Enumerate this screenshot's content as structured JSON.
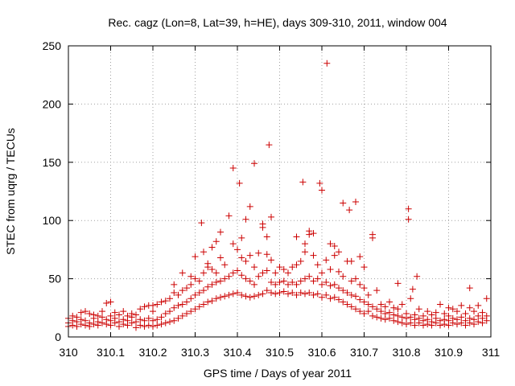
{
  "chart_data": {
    "type": "scatter",
    "title": "Rec. cagz (Lon=8, Lat=39, h=HE), days 309-310, 2011, window 004",
    "xlabel": "GPS time / Days of year 2011",
    "ylabel": "STEC from uqrg / TECUs",
    "xlim": [
      310,
      311
    ],
    "ylim": [
      0,
      250
    ],
    "xticks": [
      "310",
      "310.1",
      "310.2",
      "310.3",
      "310.4",
      "310.5",
      "310.6",
      "310.7",
      "310.8",
      "310.9",
      "311"
    ],
    "yticks": [
      "0",
      "50",
      "100",
      "150",
      "200",
      "250"
    ],
    "grid": true,
    "marker": "plus",
    "color": "#cc0000",
    "points": [
      [
        310.0,
        9
      ],
      [
        310.0,
        12
      ],
      [
        310.0,
        16
      ],
      [
        310.01,
        10
      ],
      [
        310.01,
        14
      ],
      [
        310.01,
        18
      ],
      [
        310.02,
        9
      ],
      [
        310.02,
        13
      ],
      [
        310.02,
        17
      ],
      [
        310.03,
        11
      ],
      [
        310.03,
        15
      ],
      [
        310.03,
        21
      ],
      [
        310.04,
        10
      ],
      [
        310.04,
        14
      ],
      [
        310.04,
        22
      ],
      [
        310.05,
        9
      ],
      [
        310.05,
        12
      ],
      [
        310.05,
        20
      ],
      [
        310.06,
        11
      ],
      [
        310.06,
        16
      ],
      [
        310.06,
        19
      ],
      [
        310.07,
        10
      ],
      [
        310.07,
        13
      ],
      [
        310.07,
        18
      ],
      [
        310.08,
        12
      ],
      [
        310.08,
        17
      ],
      [
        310.08,
        22
      ],
      [
        310.09,
        11
      ],
      [
        310.09,
        15
      ],
      [
        310.09,
        29
      ],
      [
        310.1,
        10
      ],
      [
        310.1,
        14
      ],
      [
        310.1,
        18
      ],
      [
        310.1,
        30
      ],
      [
        310.11,
        12
      ],
      [
        310.11,
        16
      ],
      [
        310.11,
        21
      ],
      [
        310.12,
        9
      ],
      [
        310.12,
        13
      ],
      [
        310.12,
        19
      ],
      [
        310.13,
        11
      ],
      [
        310.13,
        15
      ],
      [
        310.13,
        22
      ],
      [
        310.14,
        10
      ],
      [
        310.14,
        14
      ],
      [
        310.14,
        18
      ],
      [
        310.15,
        12
      ],
      [
        310.15,
        17
      ],
      [
        310.15,
        20
      ],
      [
        310.16,
        8
      ],
      [
        310.16,
        13
      ],
      [
        310.16,
        19
      ],
      [
        310.17,
        10
      ],
      [
        310.17,
        15
      ],
      [
        310.17,
        24
      ],
      [
        310.18,
        9
      ],
      [
        310.18,
        14
      ],
      [
        310.18,
        26
      ],
      [
        310.19,
        10
      ],
      [
        310.19,
        16
      ],
      [
        310.19,
        27
      ],
      [
        310.2,
        9
      ],
      [
        310.2,
        14
      ],
      [
        310.2,
        22
      ],
      [
        310.2,
        27
      ],
      [
        310.21,
        10
      ],
      [
        310.21,
        15
      ],
      [
        310.21,
        28
      ],
      [
        310.22,
        11
      ],
      [
        310.22,
        17
      ],
      [
        310.22,
        30
      ],
      [
        310.23,
        12
      ],
      [
        310.23,
        20
      ],
      [
        310.23,
        31
      ],
      [
        310.24,
        13
      ],
      [
        310.24,
        22
      ],
      [
        310.24,
        33
      ],
      [
        310.25,
        14
      ],
      [
        310.25,
        25
      ],
      [
        310.25,
        38
      ],
      [
        310.25,
        45
      ],
      [
        310.26,
        16
      ],
      [
        310.26,
        27
      ],
      [
        310.26,
        36
      ],
      [
        310.27,
        18
      ],
      [
        310.27,
        28
      ],
      [
        310.27,
        40
      ],
      [
        310.27,
        55
      ],
      [
        310.28,
        20
      ],
      [
        310.28,
        30
      ],
      [
        310.28,
        42
      ],
      [
        310.29,
        22
      ],
      [
        310.29,
        33
      ],
      [
        310.29,
        45
      ],
      [
        310.29,
        52
      ],
      [
        310.3,
        24
      ],
      [
        310.3,
        36
      ],
      [
        310.3,
        50
      ],
      [
        310.3,
        69
      ],
      [
        310.31,
        26
      ],
      [
        310.31,
        38
      ],
      [
        310.31,
        48
      ],
      [
        310.315,
        98
      ],
      [
        310.32,
        28
      ],
      [
        310.32,
        40
      ],
      [
        310.32,
        55
      ],
      [
        310.32,
        73
      ],
      [
        310.33,
        30
      ],
      [
        310.33,
        43
      ],
      [
        310.33,
        60
      ],
      [
        310.33,
        63
      ],
      [
        310.34,
        31
      ],
      [
        310.34,
        45
      ],
      [
        310.34,
        58
      ],
      [
        310.34,
        77
      ],
      [
        310.35,
        33
      ],
      [
        310.35,
        47
      ],
      [
        310.35,
        55
      ],
      [
        310.35,
        82
      ],
      [
        310.36,
        34
      ],
      [
        310.36,
        48
      ],
      [
        310.36,
        68
      ],
      [
        310.36,
        90
      ],
      [
        310.37,
        35
      ],
      [
        310.37,
        50
      ],
      [
        310.37,
        62
      ],
      [
        310.38,
        36
      ],
      [
        310.38,
        52
      ],
      [
        310.38,
        104
      ],
      [
        310.39,
        37
      ],
      [
        310.39,
        55
      ],
      [
        310.39,
        80
      ],
      [
        310.39,
        145
      ],
      [
        310.4,
        38
      ],
      [
        310.4,
        57
      ],
      [
        310.4,
        75
      ],
      [
        310.405,
        132
      ],
      [
        310.41,
        36
      ],
      [
        310.41,
        53
      ],
      [
        310.41,
        68
      ],
      [
        310.41,
        85
      ],
      [
        310.42,
        35
      ],
      [
        310.42,
        50
      ],
      [
        310.42,
        65
      ],
      [
        310.42,
        101
      ],
      [
        310.43,
        34
      ],
      [
        310.43,
        48
      ],
      [
        310.43,
        70
      ],
      [
        310.43,
        112
      ],
      [
        310.44,
        35
      ],
      [
        310.44,
        45
      ],
      [
        310.44,
        60
      ],
      [
        310.44,
        149
      ],
      [
        310.45,
        36
      ],
      [
        310.45,
        52
      ],
      [
        310.45,
        72
      ],
      [
        310.46,
        37
      ],
      [
        310.46,
        55
      ],
      [
        310.46,
        94
      ],
      [
        310.46,
        97
      ],
      [
        310.47,
        40
      ],
      [
        310.47,
        57
      ],
      [
        310.47,
        71
      ],
      [
        310.47,
        86
      ],
      [
        310.475,
        165
      ],
      [
        310.48,
        38
      ],
      [
        310.48,
        47
      ],
      [
        310.48,
        66
      ],
      [
        310.48,
        103
      ],
      [
        310.49,
        37
      ],
      [
        310.49,
        45
      ],
      [
        310.49,
        55
      ],
      [
        310.5,
        38
      ],
      [
        310.5,
        47
      ],
      [
        310.5,
        60
      ],
      [
        310.51,
        39
      ],
      [
        310.51,
        48
      ],
      [
        310.51,
        58
      ],
      [
        310.52,
        37
      ],
      [
        310.52,
        45
      ],
      [
        310.52,
        55
      ],
      [
        310.53,
        38
      ],
      [
        310.53,
        47
      ],
      [
        310.53,
        60
      ],
      [
        310.54,
        36
      ],
      [
        310.54,
        45
      ],
      [
        310.54,
        62
      ],
      [
        310.54,
        86
      ],
      [
        310.55,
        38
      ],
      [
        310.55,
        48
      ],
      [
        310.55,
        65
      ],
      [
        310.555,
        133
      ],
      [
        310.56,
        37
      ],
      [
        310.56,
        50
      ],
      [
        310.56,
        73
      ],
      [
        310.56,
        80
      ],
      [
        310.57,
        38
      ],
      [
        310.57,
        52
      ],
      [
        310.57,
        88
      ],
      [
        310.57,
        91
      ],
      [
        310.58,
        36
      ],
      [
        310.58,
        48
      ],
      [
        310.58,
        70
      ],
      [
        310.58,
        89
      ],
      [
        310.59,
        37
      ],
      [
        310.59,
        50
      ],
      [
        310.59,
        62
      ],
      [
        310.595,
        132
      ],
      [
        310.6,
        34
      ],
      [
        310.6,
        45
      ],
      [
        310.6,
        55
      ],
      [
        310.6,
        126
      ],
      [
        310.61,
        36
      ],
      [
        310.61,
        47
      ],
      [
        310.61,
        66
      ],
      [
        310.612,
        235
      ],
      [
        310.62,
        33
      ],
      [
        310.62,
        44
      ],
      [
        310.62,
        58
      ],
      [
        310.62,
        80
      ],
      [
        310.63,
        34
      ],
      [
        310.63,
        45
      ],
      [
        310.63,
        70
      ],
      [
        310.63,
        78
      ],
      [
        310.64,
        32
      ],
      [
        310.64,
        42
      ],
      [
        310.64,
        56
      ],
      [
        310.64,
        73
      ],
      [
        310.65,
        30
      ],
      [
        310.65,
        40
      ],
      [
        310.65,
        52
      ],
      [
        310.65,
        115
      ],
      [
        310.66,
        28
      ],
      [
        310.66,
        38
      ],
      [
        310.66,
        65
      ],
      [
        310.665,
        109
      ],
      [
        310.67,
        26
      ],
      [
        310.67,
        36
      ],
      [
        310.67,
        48
      ],
      [
        310.67,
        65
      ],
      [
        310.68,
        24
      ],
      [
        310.68,
        35
      ],
      [
        310.68,
        50
      ],
      [
        310.68,
        116
      ],
      [
        310.69,
        22
      ],
      [
        310.69,
        32
      ],
      [
        310.69,
        45
      ],
      [
        310.69,
        69
      ],
      [
        310.7,
        20
      ],
      [
        310.7,
        30
      ],
      [
        310.7,
        42
      ],
      [
        310.7,
        60
      ],
      [
        310.71,
        22
      ],
      [
        310.71,
        28
      ],
      [
        310.71,
        36
      ],
      [
        310.72,
        18
      ],
      [
        310.72,
        26
      ],
      [
        310.72,
        85
      ],
      [
        310.72,
        88
      ],
      [
        310.73,
        17
      ],
      [
        310.73,
        24
      ],
      [
        310.73,
        40
      ],
      [
        310.74,
        16
      ],
      [
        310.74,
        22
      ],
      [
        310.74,
        28
      ],
      [
        310.75,
        15
      ],
      [
        310.75,
        20
      ],
      [
        310.75,
        26
      ],
      [
        310.76,
        16
      ],
      [
        310.76,
        21
      ],
      [
        310.76,
        30
      ],
      [
        310.77,
        14
      ],
      [
        310.77,
        19
      ],
      [
        310.77,
        25
      ],
      [
        310.78,
        13
      ],
      [
        310.78,
        18
      ],
      [
        310.78,
        24
      ],
      [
        310.78,
        46
      ],
      [
        310.79,
        12
      ],
      [
        310.79,
        17
      ],
      [
        310.79,
        28
      ],
      [
        310.8,
        11
      ],
      [
        310.8,
        16
      ],
      [
        310.8,
        20
      ],
      [
        310.805,
        110
      ],
      [
        310.805,
        101
      ],
      [
        310.81,
        12
      ],
      [
        310.81,
        17
      ],
      [
        310.81,
        33
      ],
      [
        310.815,
        41
      ],
      [
        310.82,
        10
      ],
      [
        310.82,
        15
      ],
      [
        310.82,
        19
      ],
      [
        310.825,
        52
      ],
      [
        310.83,
        12
      ],
      [
        310.83,
        16
      ],
      [
        310.83,
        24
      ],
      [
        310.84,
        10
      ],
      [
        310.84,
        14
      ],
      [
        310.84,
        18
      ],
      [
        310.85,
        11
      ],
      [
        310.85,
        15
      ],
      [
        310.85,
        22
      ],
      [
        310.86,
        10
      ],
      [
        310.86,
        13
      ],
      [
        310.86,
        19
      ],
      [
        310.87,
        12
      ],
      [
        310.87,
        16
      ],
      [
        310.87,
        21
      ],
      [
        310.88,
        10
      ],
      [
        310.88,
        14
      ],
      [
        310.88,
        28
      ],
      [
        310.89,
        11
      ],
      [
        310.89,
        15
      ],
      [
        310.89,
        20
      ],
      [
        310.9,
        10
      ],
      [
        310.9,
        14
      ],
      [
        310.9,
        18
      ],
      [
        310.9,
        25
      ],
      [
        310.91,
        12
      ],
      [
        310.91,
        16
      ],
      [
        310.91,
        24
      ],
      [
        310.92,
        11
      ],
      [
        310.92,
        15
      ],
      [
        310.92,
        22
      ],
      [
        310.93,
        12
      ],
      [
        310.93,
        17
      ],
      [
        310.93,
        27
      ],
      [
        310.94,
        10
      ],
      [
        310.94,
        14
      ],
      [
        310.94,
        20
      ],
      [
        310.95,
        12
      ],
      [
        310.95,
        16
      ],
      [
        310.95,
        25
      ],
      [
        310.95,
        42
      ],
      [
        310.96,
        11
      ],
      [
        310.96,
        15
      ],
      [
        310.96,
        22
      ],
      [
        310.97,
        13
      ],
      [
        310.97,
        18
      ],
      [
        310.97,
        27
      ],
      [
        310.98,
        12
      ],
      [
        310.98,
        16
      ],
      [
        310.98,
        21
      ],
      [
        310.99,
        14
      ],
      [
        310.99,
        18
      ],
      [
        310.99,
        33
      ]
    ]
  }
}
